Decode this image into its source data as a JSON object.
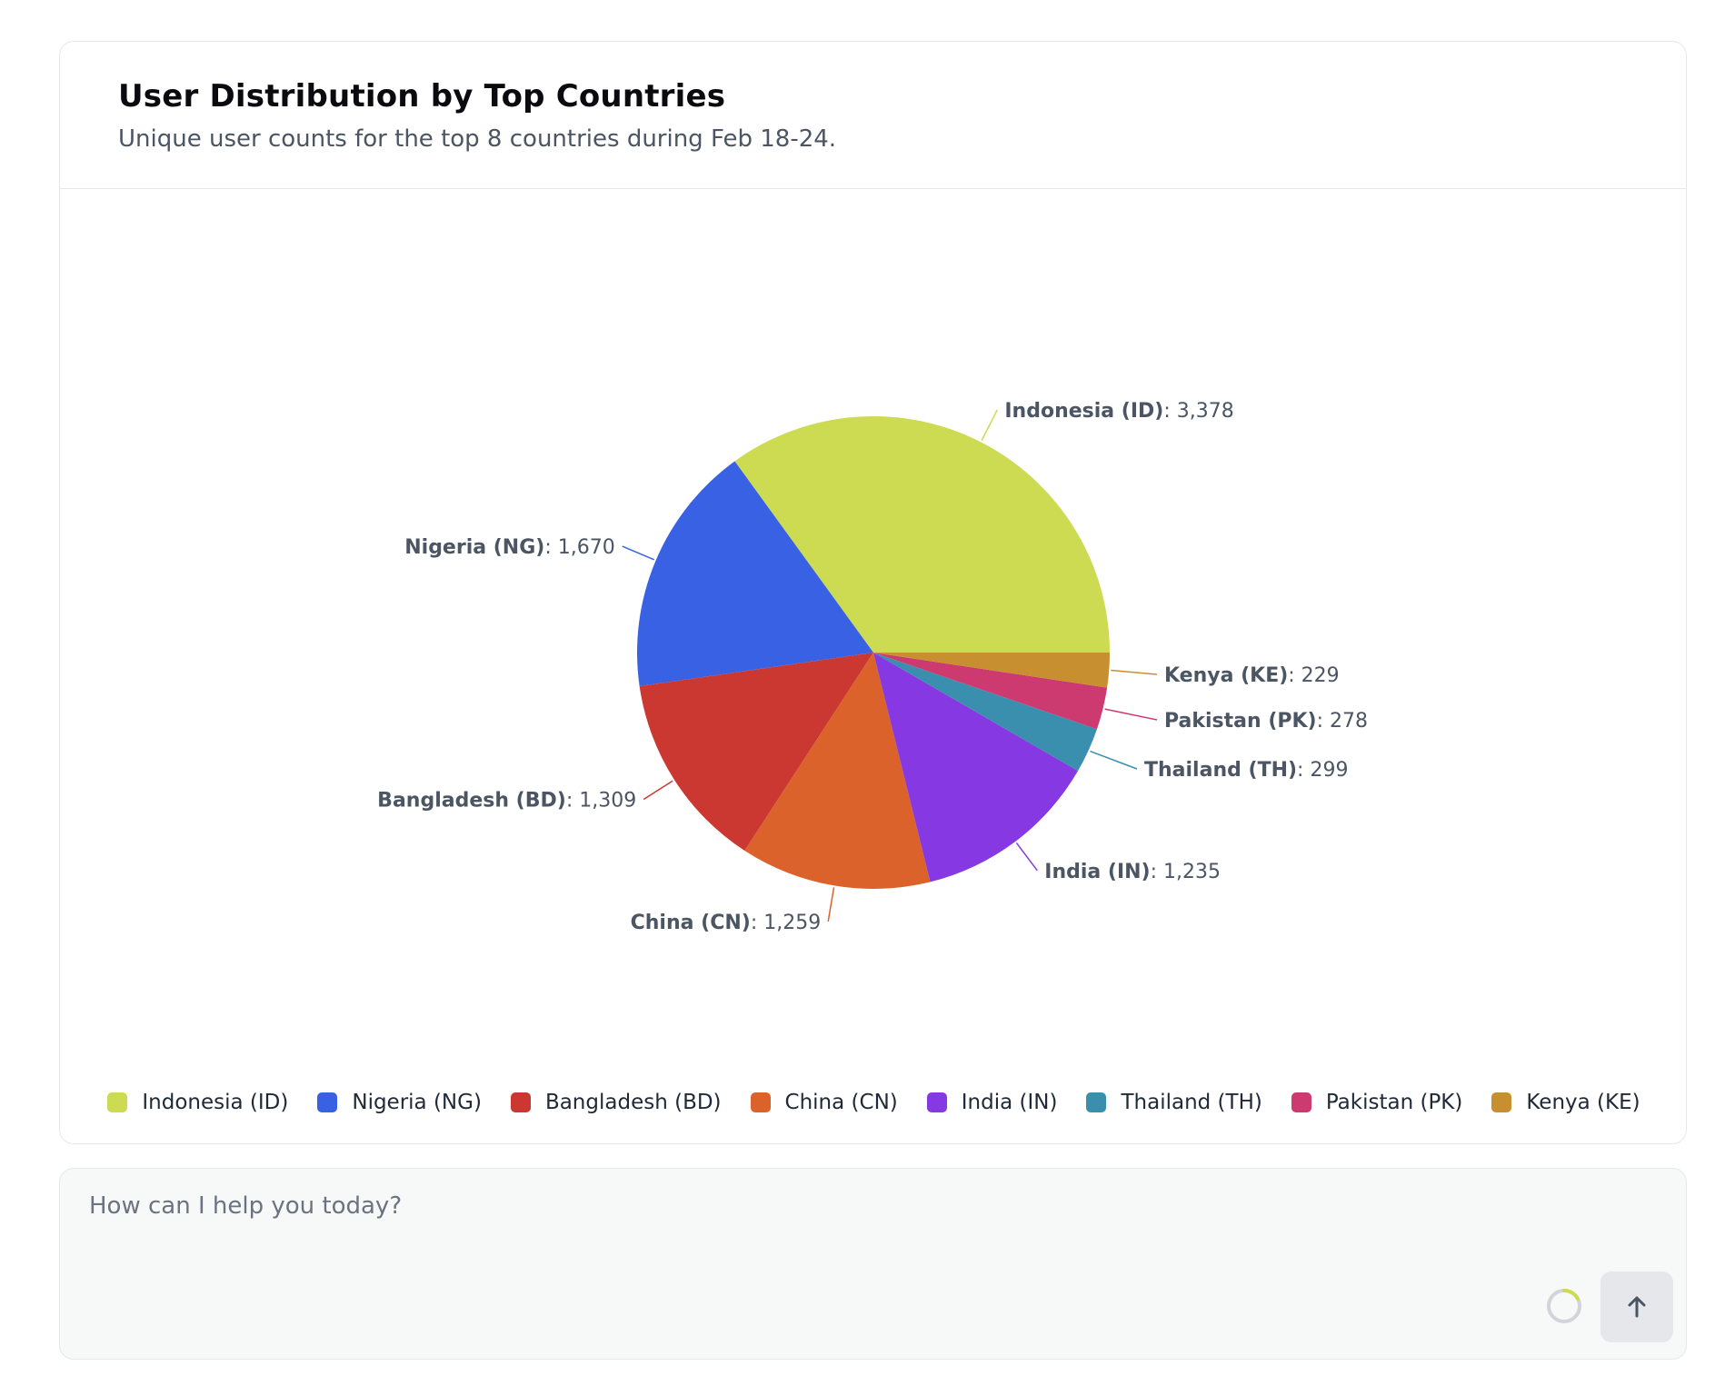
{
  "card": {
    "title": "User Distribution by Top Countries",
    "subtitle": "Unique user counts for the top 8 countries during Feb 18-24."
  },
  "chart_data": {
    "type": "pie",
    "title": "User Distribution by Top Countries",
    "subtitle": "Unique user counts for the top 8 countries during Feb 18-24.",
    "legend_position": "bottom",
    "slices": [
      {
        "label": "Indonesia (ID)",
        "value": 3378,
        "display": "3,378",
        "color": "#cddb52"
      },
      {
        "label": "Nigeria (NG)",
        "value": 1670,
        "display": "1,670",
        "color": "#3862e3"
      },
      {
        "label": "Bangladesh (BD)",
        "value": 1309,
        "display": "1,309",
        "color": "#cb3831"
      },
      {
        "label": "China (CN)",
        "value": 1259,
        "display": "1,259",
        "color": "#dc622c"
      },
      {
        "label": "India (IN)",
        "value": 1235,
        "display": "1,235",
        "color": "#8638e3"
      },
      {
        "label": "Thailand (TH)",
        "value": 299,
        "display": "299",
        "color": "#3a8fae"
      },
      {
        "label": "Pakistan (PK)",
        "value": 278,
        "display": "278",
        "color": "#cd3a70"
      },
      {
        "label": "Kenya (KE)",
        "value": 229,
        "display": "229",
        "color": "#c78f30"
      }
    ]
  },
  "chat": {
    "placeholder": "How can I help you today?"
  },
  "icons": {
    "send": "arrow-up-icon",
    "spinner": "loading-spinner-icon"
  }
}
